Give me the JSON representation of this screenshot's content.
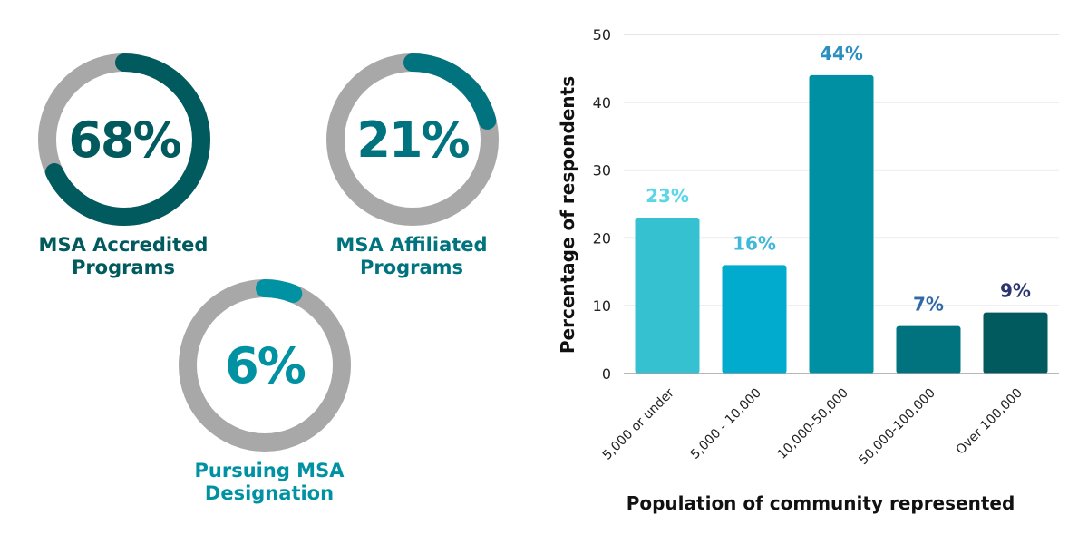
{
  "donuts": [
    {
      "value": 68,
      "label_value": "68%",
      "label_line1": "MSA Accredited",
      "label_line2": "Programs",
      "color": "#005a5e",
      "text_color": "#005a5e",
      "track_color": "#a8a8a8"
    },
    {
      "value": 21,
      "label_value": "21%",
      "label_line1": "MSA Affiliated",
      "label_line2": "Programs",
      "color": "#00737e",
      "text_color": "#00737e",
      "track_color": "#a8a8a8"
    },
    {
      "value": 6,
      "label_value": "6%",
      "label_line1": "Pursuing MSA",
      "label_line2": "Designation",
      "color": "#0092a3",
      "text_color": "#0092a3",
      "track_color": "#a8a8a8"
    }
  ],
  "chart_data": {
    "type": "bar",
    "title": "",
    "categories": [
      "5,000 or under",
      "5,000 - 10,000",
      "10,000-50,000",
      "50,000-100,000",
      "Over 100,000"
    ],
    "values": [
      23,
      16,
      44,
      7,
      9
    ],
    "data_labels": [
      "23%",
      "16%",
      "44%",
      "7%",
      "9%"
    ],
    "bar_colors": [
      "#36c1d1",
      "#00abcd",
      "#0090a4",
      "#00737e",
      "#005a5e"
    ],
    "data_label_colors": [
      "#5cd6e6",
      "#3fb8d9",
      "#2b8fbf",
      "#2f6aa6",
      "#2c3570"
    ],
    "xlabel": "Population of community represented",
    "ylabel": "Percentage of respondents",
    "ylim": [
      0,
      50
    ],
    "yticks": [
      0,
      10,
      20,
      30,
      40,
      50
    ],
    "ytick_labels": [
      "0",
      "10",
      "20",
      "30",
      "40",
      "50"
    ],
    "grid": true,
    "legend": "none"
  }
}
